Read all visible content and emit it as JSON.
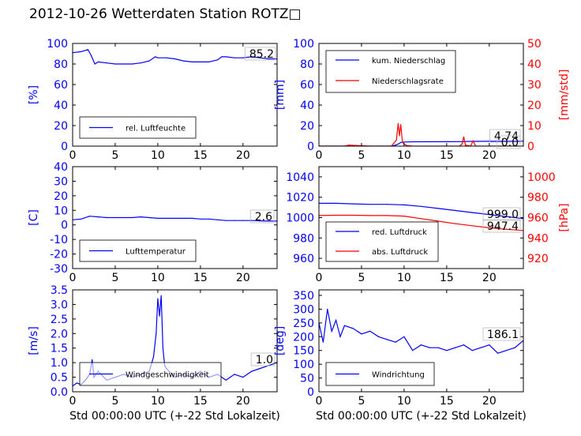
{
  "title": "2012-10-26 Wetterdaten Station ROTZ□",
  "chart_data": [
    {
      "type": "line",
      "panel": "humidity",
      "xlim": [
        0,
        24
      ],
      "ylim": [
        0,
        100
      ],
      "xticks": [
        0,
        5,
        10,
        15,
        20
      ],
      "yticks": [
        0,
        20,
        40,
        60,
        80,
        100
      ],
      "ylabel": "[%]",
      "grid": false,
      "legend": "lower-left",
      "current_value": "85.2",
      "series": [
        {
          "name": "rel. Luftfeuchte",
          "color": "#0000ff",
          "x": [
            0,
            1,
            1.8,
            2.2,
            2.6,
            3,
            4,
            5,
            6,
            7,
            8,
            9,
            9.7,
            10,
            11,
            12,
            13,
            14,
            15,
            16,
            17,
            17.5,
            18,
            19,
            20,
            21,
            22,
            23,
            24
          ],
          "y": [
            91,
            92,
            94,
            88,
            80,
            82,
            81,
            80,
            80,
            80,
            81,
            83,
            87,
            86,
            86,
            85,
            83,
            82,
            82,
            82,
            84,
            87,
            87,
            86,
            86,
            87,
            86,
            85,
            85
          ]
        }
      ]
    },
    {
      "type": "line",
      "panel": "precipitation",
      "xlim": [
        0,
        24
      ],
      "ylim": [
        0,
        100
      ],
      "y2lim": [
        0,
        50
      ],
      "xticks": [
        0,
        5,
        10,
        15,
        20
      ],
      "yticks": [
        0,
        20,
        40,
        60,
        80,
        100
      ],
      "y2ticks": [
        0,
        10,
        20,
        30,
        40,
        50
      ],
      "ylabel": "[mm]",
      "y2label": "[mm/std]",
      "grid": false,
      "legend": "upper-left",
      "current_values": [
        "4.74",
        "0.0"
      ],
      "series": [
        {
          "name": "kum. Niederschlag",
          "color": "#0000ff",
          "axis": "left",
          "x": [
            0,
            8.5,
            9,
            9.3,
            9.6,
            10,
            11,
            15,
            16.8,
            17,
            18,
            20,
            22,
            24
          ],
          "y": [
            0,
            0,
            1,
            2,
            3.5,
            4,
            4.2,
            4.3,
            4.4,
            4.5,
            4.6,
            4.7,
            4.74,
            4.74
          ]
        }
      ],
      "series2": [
        {
          "name": "Niederschlagsrate",
          "color": "#ff0000",
          "axis": "right",
          "x": [
            0,
            3,
            3.5,
            6,
            8.5,
            8.8,
            9.1,
            9.3,
            9.45,
            9.6,
            9.8,
            10,
            10.3,
            11,
            16.5,
            16.8,
            17,
            17.2,
            17.8,
            18.1,
            18.4,
            24
          ],
          "y": [
            0,
            0,
            0.5,
            0,
            0,
            1.5,
            3,
            11,
            5,
            10.5,
            2,
            1,
            0.3,
            0,
            0,
            1,
            4.5,
            0.5,
            0,
            2.5,
            0,
            0
          ]
        }
      ]
    },
    {
      "type": "line",
      "panel": "temperature",
      "xlim": [
        0,
        24
      ],
      "ylim": [
        -30,
        40
      ],
      "xticks": [
        0,
        5,
        10,
        15,
        20
      ],
      "yticks": [
        -30,
        -20,
        -10,
        0,
        10,
        20,
        30,
        40
      ],
      "ylabel": "[C]",
      "grid": false,
      "legend": "lower-left",
      "current_value": "2.6",
      "series": [
        {
          "name": "Lufttemperatur",
          "color": "#0000ff",
          "x": [
            0,
            1,
            2,
            3,
            4,
            5,
            6,
            7,
            8,
            9,
            10,
            11,
            12,
            13,
            14,
            15,
            16,
            17,
            18,
            19,
            20,
            21,
            22,
            23,
            24
          ],
          "y": [
            3.5,
            4,
            6,
            5.5,
            5,
            5,
            5,
            5,
            5.5,
            5,
            4.5,
            4.5,
            4.5,
            4.5,
            4.5,
            4,
            4,
            3.5,
            3,
            3,
            3,
            3,
            2.8,
            2.6,
            2.6
          ]
        }
      ]
    },
    {
      "type": "line",
      "panel": "pressure",
      "xlim": [
        0,
        24
      ],
      "ylim": [
        950,
        1050
      ],
      "y2lim": [
        910,
        1010
      ],
      "xticks": [
        0,
        5,
        10,
        15,
        20
      ],
      "yticks": [
        960,
        980,
        1000,
        1020,
        1040
      ],
      "y2ticks": [
        920,
        940,
        960,
        980,
        1000
      ],
      "y2label": "[hPa]",
      "grid": false,
      "legend": "lower-left",
      "current_values": [
        "999.0",
        "947.4"
      ],
      "series": [
        {
          "name": "red. Luftdruck",
          "color": "#0000ff",
          "axis": "left",
          "x": [
            0,
            2,
            4,
            6,
            8,
            10,
            12,
            14,
            16,
            18,
            20,
            22,
            24
          ],
          "y": [
            1014,
            1014,
            1013.5,
            1013,
            1013,
            1012.5,
            1011,
            1009,
            1007,
            1005,
            1003,
            1001,
            999
          ]
        }
      ],
      "series2": [
        {
          "name": "abs. Luftdruck",
          "color": "#ff0000",
          "axis": "right",
          "x": [
            0,
            2,
            4,
            6,
            8,
            10,
            12,
            14,
            16,
            18,
            20,
            22,
            24
          ],
          "y": [
            962,
            962.3,
            962.3,
            962,
            962,
            961.5,
            959,
            956.5,
            954,
            952,
            950,
            948.5,
            947.4
          ]
        }
      ]
    },
    {
      "type": "line",
      "panel": "wind-speed",
      "xlim": [
        0,
        24
      ],
      "ylim": [
        0,
        3.5
      ],
      "xticks": [
        0,
        5,
        10,
        15,
        20
      ],
      "yticks": [
        0.0,
        0.5,
        1.0,
        1.5,
        2.0,
        2.5,
        3.0,
        3.5
      ],
      "ylabel": "[m/s]",
      "xlabel": "Std 00:00:00 UTC (+-22 Std Lokalzeit)",
      "grid": false,
      "legend": "lower-left",
      "current_value": "1.0",
      "series": [
        {
          "name": "Windgeschwindigkeit",
          "color": "#0000ff",
          "x": [
            0,
            0.5,
            1,
            1.5,
            2,
            2.3,
            2.5,
            3,
            4,
            5,
            6,
            7,
            8,
            9,
            9.5,
            9.8,
            10,
            10.2,
            10.4,
            10.6,
            10.8,
            11,
            12,
            13,
            14,
            15,
            16,
            17,
            18,
            19,
            20,
            21,
            22,
            23,
            24
          ],
          "y": [
            0.2,
            0.3,
            0.25,
            0.4,
            0.6,
            1.1,
            0.5,
            0.7,
            0.4,
            0.5,
            0.6,
            0.5,
            0.6,
            0.7,
            1.2,
            2.0,
            3.2,
            2.6,
            3.3,
            1.5,
            0.9,
            0.8,
            0.5,
            0.6,
            0.5,
            0.7,
            0.5,
            0.6,
            0.4,
            0.6,
            0.5,
            0.7,
            0.8,
            0.9,
            1.0
          ]
        }
      ]
    },
    {
      "type": "line",
      "panel": "wind-direction",
      "xlim": [
        0,
        24
      ],
      "ylim": [
        0,
        370
      ],
      "xticks": [
        0,
        5,
        10,
        15,
        20
      ],
      "yticks": [
        0,
        50,
        100,
        150,
        200,
        250,
        300,
        350
      ],
      "ylabel": "[deg]",
      "xlabel": "Std 00:00:00 UTC (+-22 Std Lokalzeit)",
      "grid": false,
      "legend": "lower-left",
      "current_value": "186.1",
      "series": [
        {
          "name": "Windrichtung",
          "color": "#0000ff",
          "x": [
            0,
            0.5,
            1,
            1.5,
            2,
            2.5,
            3,
            4,
            5,
            6,
            7,
            8,
            9,
            10,
            11,
            12,
            13,
            14,
            15,
            16,
            17,
            18,
            19,
            20,
            21,
            22,
            23,
            24
          ],
          "y": [
            250,
            180,
            300,
            220,
            260,
            200,
            240,
            230,
            210,
            220,
            200,
            190,
            180,
            200,
            150,
            170,
            160,
            160,
            150,
            160,
            170,
            150,
            160,
            170,
            140,
            150,
            160,
            186.1
          ]
        }
      ]
    }
  ]
}
